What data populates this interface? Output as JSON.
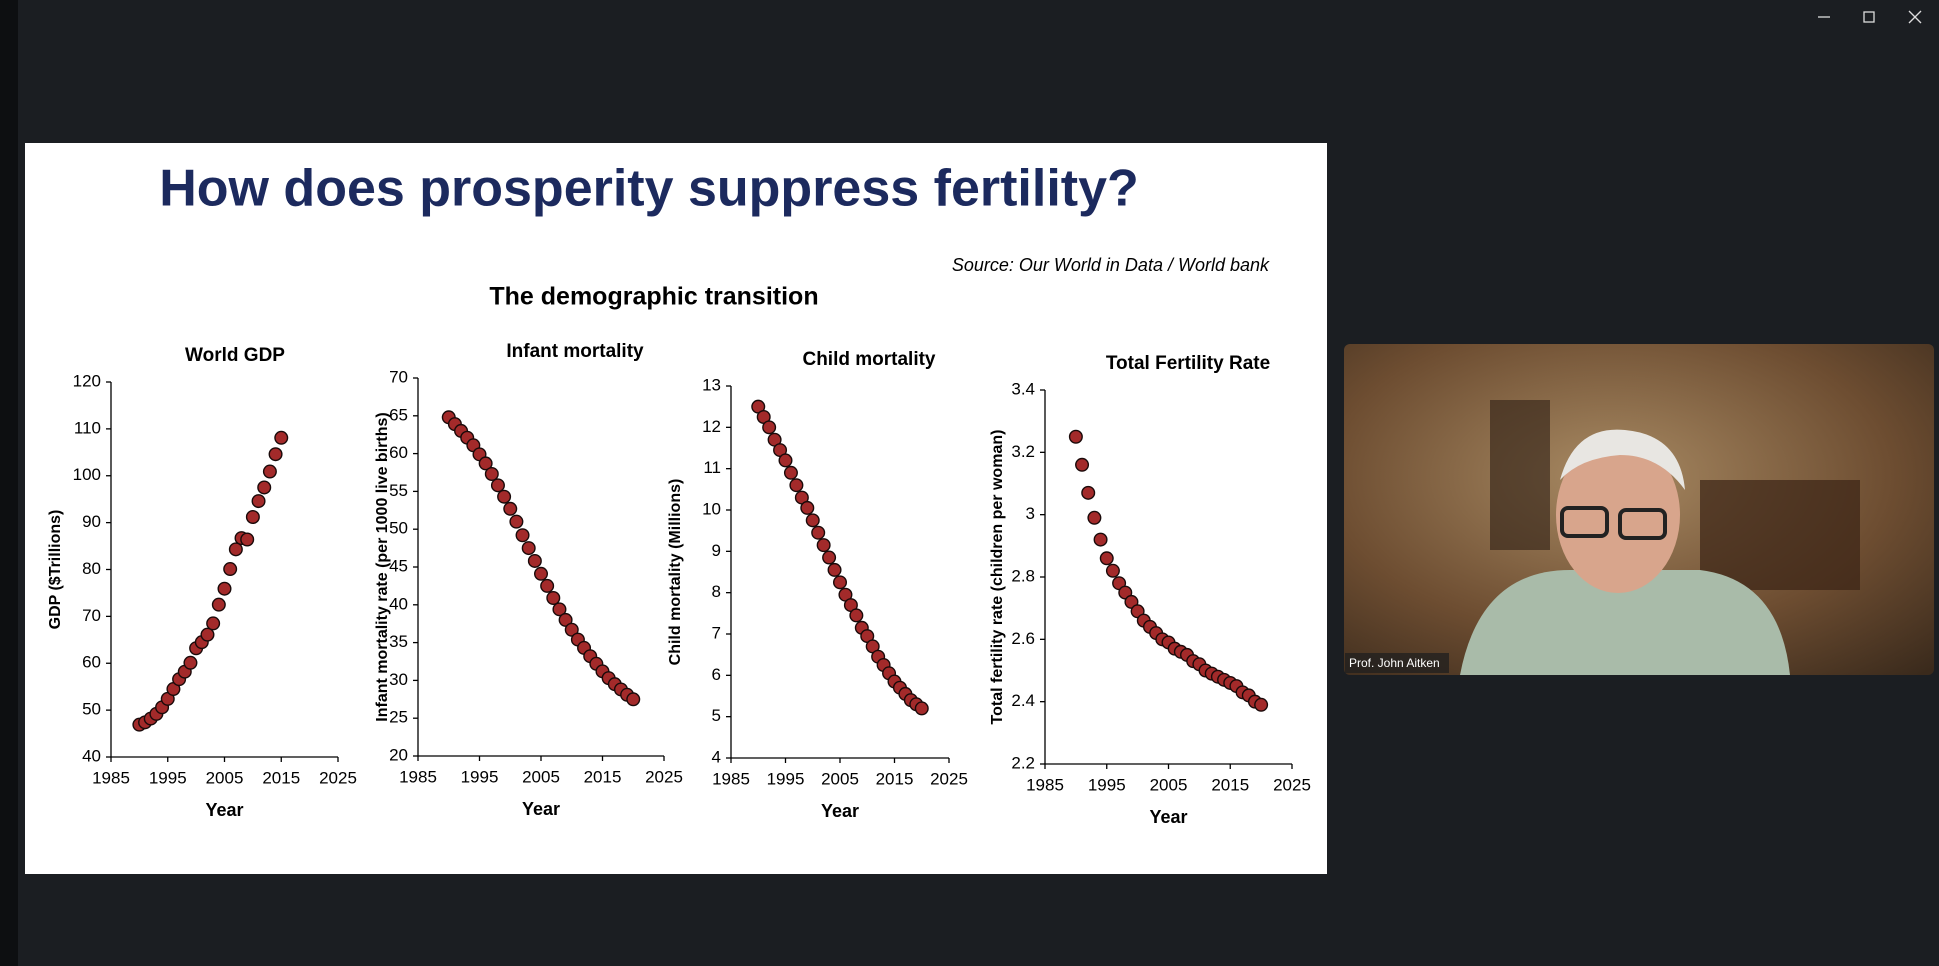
{
  "slide": {
    "title": "How does prosperity suppress fertility?",
    "source": "Source: Our World in Data / World bank",
    "subtitle": "The demographic transition"
  },
  "video": {
    "participant": "Prof. John Aitken"
  },
  "chart_data": [
    {
      "type": "scatter",
      "title": "World GDP",
      "x_label": "Year",
      "y_label": "GDP ($Trillions)",
      "color": "#a32a2a",
      "x": [
        1990,
        1991,
        1992,
        1993,
        1994,
        1995,
        1996,
        1997,
        1998,
        1999,
        2000,
        2001,
        2002,
        2003,
        2004,
        2005,
        2006,
        2007,
        2008,
        2009,
        2010,
        2011,
        2012,
        2013,
        2014,
        2015
      ],
      "values": [
        46.9,
        47.4,
        48.2,
        49.2,
        50.6,
        52.4,
        54.5,
        56.6,
        58.2,
        60.1,
        63.2,
        64.5,
        66.1,
        68.5,
        72.5,
        75.9,
        80.1,
        84.3,
        86.7,
        86.4,
        91.2,
        94.6,
        97.5,
        100.9,
        104.6,
        108.1
      ],
      "xlim": [
        1985,
        2025
      ],
      "xticks": [
        1985,
        1995,
        2005,
        2015,
        2025
      ],
      "ylim": [
        40,
        120
      ],
      "yticks": [
        40,
        50,
        60,
        70,
        80,
        90,
        100,
        110,
        120
      ]
    },
    {
      "type": "scatter",
      "title": "Infant mortality",
      "x_label": "Year",
      "y_label": "Infant mortality rate (per 1000 live births)",
      "color": "#a32a2a",
      "x": [
        1990,
        1991,
        1992,
        1993,
        1994,
        1995,
        1996,
        1997,
        1998,
        1999,
        2000,
        2001,
        2002,
        2003,
        2004,
        2005,
        2006,
        2007,
        2008,
        2009,
        2010,
        2011,
        2012,
        2013,
        2014,
        2015,
        2016,
        2017,
        2018,
        2019,
        2020
      ],
      "values": [
        64.8,
        63.9,
        63.0,
        62.1,
        61.1,
        59.9,
        58.7,
        57.3,
        55.8,
        54.3,
        52.7,
        51.0,
        49.2,
        47.5,
        45.8,
        44.1,
        42.5,
        40.9,
        39.4,
        38.0,
        36.7,
        35.4,
        34.3,
        33.2,
        32.2,
        31.2,
        30.3,
        29.5,
        28.8,
        28.1,
        27.5
      ],
      "xlim": [
        1985,
        2025
      ],
      "xticks": [
        1985,
        1995,
        2005,
        2015,
        2025
      ],
      "ylim": [
        20,
        70
      ],
      "yticks": [
        20,
        25,
        30,
        35,
        40,
        45,
        50,
        55,
        60,
        65,
        70
      ]
    },
    {
      "type": "scatter",
      "title": "Child mortality",
      "x_label": "Year",
      "y_label": "Child mortality (Millions)",
      "color": "#a32a2a",
      "x": [
        1990,
        1991,
        1992,
        1993,
        1994,
        1995,
        1996,
        1997,
        1998,
        1999,
        2000,
        2001,
        2002,
        2003,
        2004,
        2005,
        2006,
        2007,
        2008,
        2009,
        2010,
        2011,
        2012,
        2013,
        2014,
        2015,
        2016,
        2017,
        2018,
        2019,
        2020
      ],
      "values": [
        12.5,
        12.25,
        12.0,
        11.7,
        11.45,
        11.2,
        10.9,
        10.6,
        10.3,
        10.05,
        9.75,
        9.45,
        9.15,
        8.85,
        8.55,
        8.25,
        7.95,
        7.7,
        7.45,
        7.15,
        6.95,
        6.7,
        6.45,
        6.25,
        6.05,
        5.85,
        5.7,
        5.55,
        5.4,
        5.3,
        5.2
      ],
      "xlim": [
        1985,
        2025
      ],
      "xticks": [
        1985,
        1995,
        2005,
        2015,
        2025
      ],
      "ylim": [
        4,
        13
      ],
      "yticks": [
        4,
        5,
        6,
        7,
        8,
        9,
        10,
        11,
        12,
        13
      ]
    },
    {
      "type": "scatter",
      "title": "Total Fertility Rate",
      "x_label": "Year",
      "y_label": "Total fertility rate (children per woman)",
      "color": "#a32a2a",
      "x": [
        1990,
        1991,
        1992,
        1993,
        1994,
        1995,
        1996,
        1997,
        1998,
        1999,
        2000,
        2001,
        2002,
        2003,
        2004,
        2005,
        2006,
        2007,
        2008,
        2009,
        2010,
        2011,
        2012,
        2013,
        2014,
        2015,
        2016,
        2017,
        2018,
        2019,
        2020
      ],
      "values": [
        3.25,
        3.16,
        3.07,
        2.99,
        2.92,
        2.86,
        2.82,
        2.78,
        2.75,
        2.72,
        2.69,
        2.66,
        2.64,
        2.62,
        2.6,
        2.59,
        2.57,
        2.56,
        2.55,
        2.53,
        2.52,
        2.5,
        2.49,
        2.48,
        2.47,
        2.46,
        2.45,
        2.43,
        2.42,
        2.4,
        2.39
      ],
      "xlim": [
        1985,
        2025
      ],
      "xticks": [
        1985,
        1995,
        2005,
        2015,
        2025
      ],
      "ylim": [
        2.2,
        3.4
      ],
      "yticks": [
        2.2,
        2.4,
        2.6,
        2.8,
        3,
        3.2,
        3.4
      ]
    }
  ]
}
